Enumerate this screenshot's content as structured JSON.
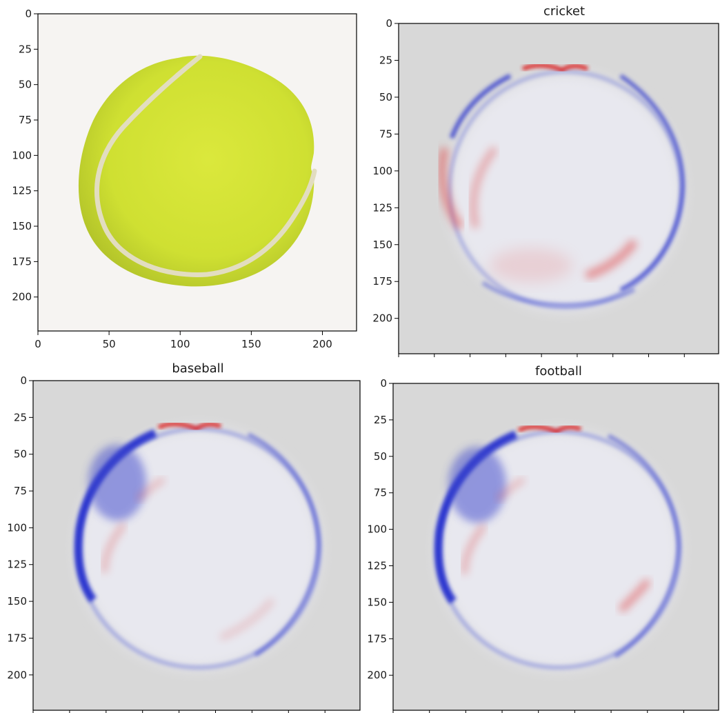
{
  "figure": {
    "description_free": true
  },
  "chart_data": [
    {
      "type": "image",
      "title": "",
      "content": "photo-tennis-ball",
      "xlim": [
        0,
        224
      ],
      "ylim": [
        224,
        0
      ],
      "xticks": [
        0,
        50,
        100,
        150,
        200
      ],
      "yticks": [
        0,
        25,
        50,
        75,
        100,
        125,
        150,
        175,
        200
      ],
      "xtick_labels": [
        "0",
        "50",
        "100",
        "150",
        "200"
      ],
      "ytick_labels": [
        "0",
        "25",
        "50",
        "75",
        "100",
        "125",
        "150",
        "175",
        "200"
      ],
      "colors": {
        "background": "#f6f4f2",
        "ball": "#d8e63a",
        "ball_shade": "#b9c92a",
        "seam": "#ddd9b9"
      }
    },
    {
      "type": "heatmap",
      "title": "cricket",
      "colormap": "bwr",
      "xlim": [
        0,
        224
      ],
      "ylim": [
        224,
        0
      ],
      "yticks": [
        0,
        25,
        50,
        75,
        100,
        125,
        150,
        175,
        200
      ],
      "ytick_labels": [
        "0",
        "25",
        "50",
        "75",
        "100",
        "125",
        "150",
        "175",
        "200"
      ],
      "xtick_labels_visible": false,
      "colors": {
        "background": "#d8d8d8",
        "positive": "#dd1111",
        "negative": "#1a22cc"
      }
    },
    {
      "type": "heatmap",
      "title": "baseball",
      "colormap": "bwr",
      "xlim": [
        0,
        224
      ],
      "ylim": [
        224,
        0
      ],
      "yticks": [
        0,
        25,
        50,
        75,
        100,
        125,
        150,
        175,
        200
      ],
      "ytick_labels": [
        "0",
        "25",
        "50",
        "75",
        "100",
        "125",
        "150",
        "175",
        "200"
      ],
      "xtick_labels_visible": false,
      "colors": {
        "background": "#d8d8d8",
        "positive": "#dd1111",
        "negative": "#1a22cc"
      }
    },
    {
      "type": "heatmap",
      "title": "football",
      "colormap": "bwr",
      "xlim": [
        0,
        224
      ],
      "ylim": [
        224,
        0
      ],
      "yticks": [
        0,
        25,
        50,
        75,
        100,
        125,
        150,
        175,
        200
      ],
      "ytick_labels": [
        "0",
        "25",
        "50",
        "75",
        "100",
        "125",
        "150",
        "175",
        "200"
      ],
      "xtick_labels_visible": false,
      "colors": {
        "background": "#d8d8d8",
        "positive": "#dd1111",
        "negative": "#1a22cc"
      }
    }
  ]
}
